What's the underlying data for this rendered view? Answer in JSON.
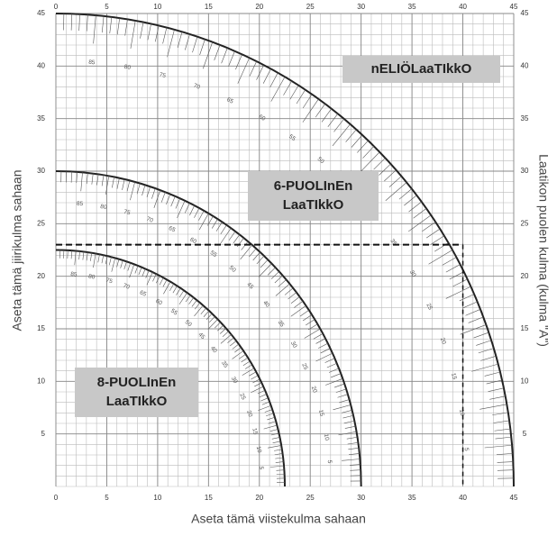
{
  "axes": {
    "xlim": [
      0,
      45
    ],
    "ylim": [
      0,
      45
    ],
    "xticks": [
      0,
      5,
      10,
      15,
      20,
      25,
      30,
      35,
      40,
      45
    ],
    "yticks": [
      5,
      10,
      15,
      20,
      25,
      30,
      35,
      40,
      45
    ],
    "left_title": "Aseta tämä jiirikulma sahaan",
    "right_title": "Laatikon puolen kulma (kulma \"A\")",
    "bottom_title": "Aseta tämä viistekulma sahaan"
  },
  "arcs": [
    {
      "radius": 45,
      "scale_labels": [
        5,
        10,
        15,
        20,
        25,
        30,
        35,
        40,
        45,
        50,
        55,
        60,
        65,
        70,
        75,
        80,
        85
      ]
    },
    {
      "radius": 30,
      "scale_labels": [
        5,
        10,
        15,
        20,
        25,
        30,
        35,
        40,
        45,
        50,
        55,
        60,
        65,
        70,
        75,
        80,
        85
      ]
    },
    {
      "radius": 22.5,
      "scale_labels": [
        5,
        10,
        15,
        20,
        25,
        30,
        35,
        40,
        45,
        50,
        55,
        60,
        65,
        70,
        75,
        80,
        85
      ]
    }
  ],
  "guide": {
    "x": 40,
    "y": 23
  },
  "boxes": [
    {
      "lines": [
        "nELIÖLaaTIkkO"
      ]
    },
    {
      "lines": [
        "6-PUOLInEn",
        "LaaTIkkO"
      ]
    },
    {
      "lines": [
        "8-PUOLInEn",
        "LaaTIkkO"
      ]
    }
  ]
}
